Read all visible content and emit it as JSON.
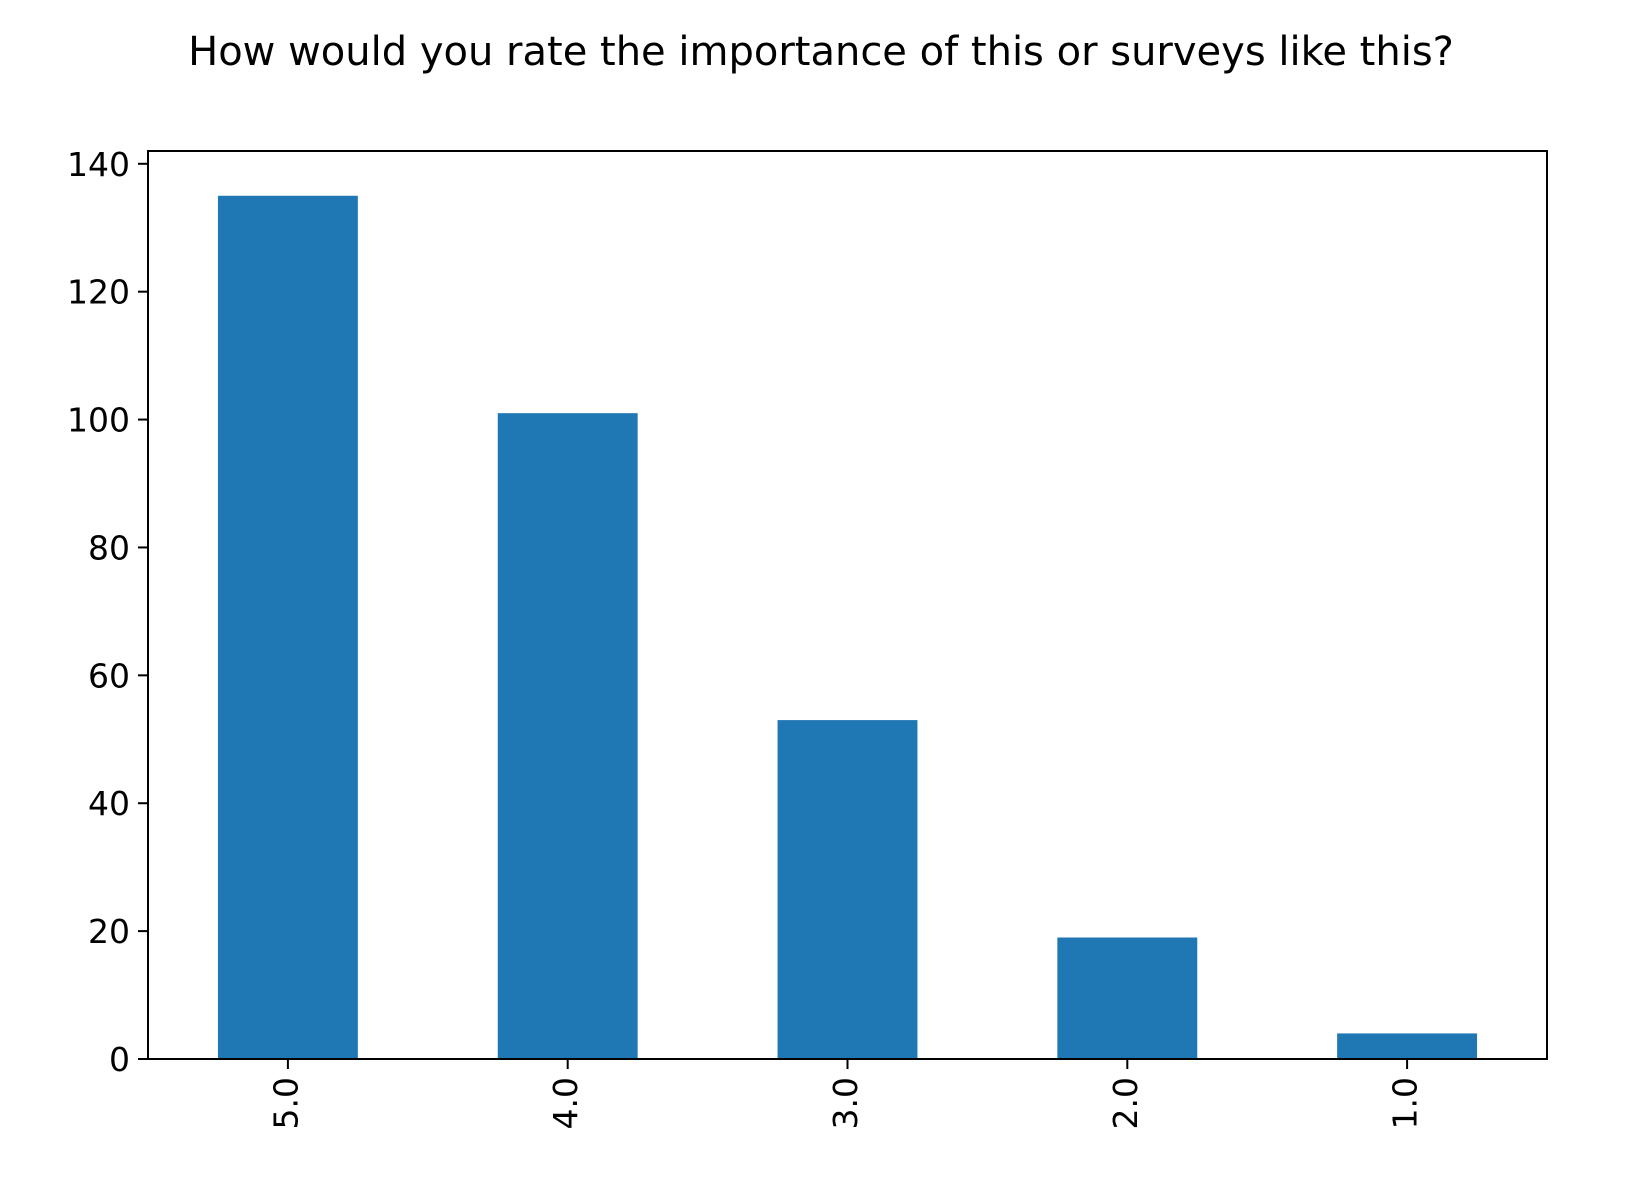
{
  "chart_data": {
    "type": "bar",
    "title": "How would you rate the importance of this or surveys like this?",
    "xlabel": "",
    "ylabel": "",
    "categories": [
      "5.0",
      "4.0",
      "3.0",
      "2.0",
      "1.0"
    ],
    "values": [
      135,
      101,
      53,
      19,
      4
    ],
    "ylim": [
      0,
      142
    ],
    "yticks": [
      "0",
      "20",
      "40",
      "60",
      "80",
      "100",
      "120",
      "140"
    ],
    "grid": false,
    "legend": "none",
    "bar_color": "#1f77b4"
  }
}
